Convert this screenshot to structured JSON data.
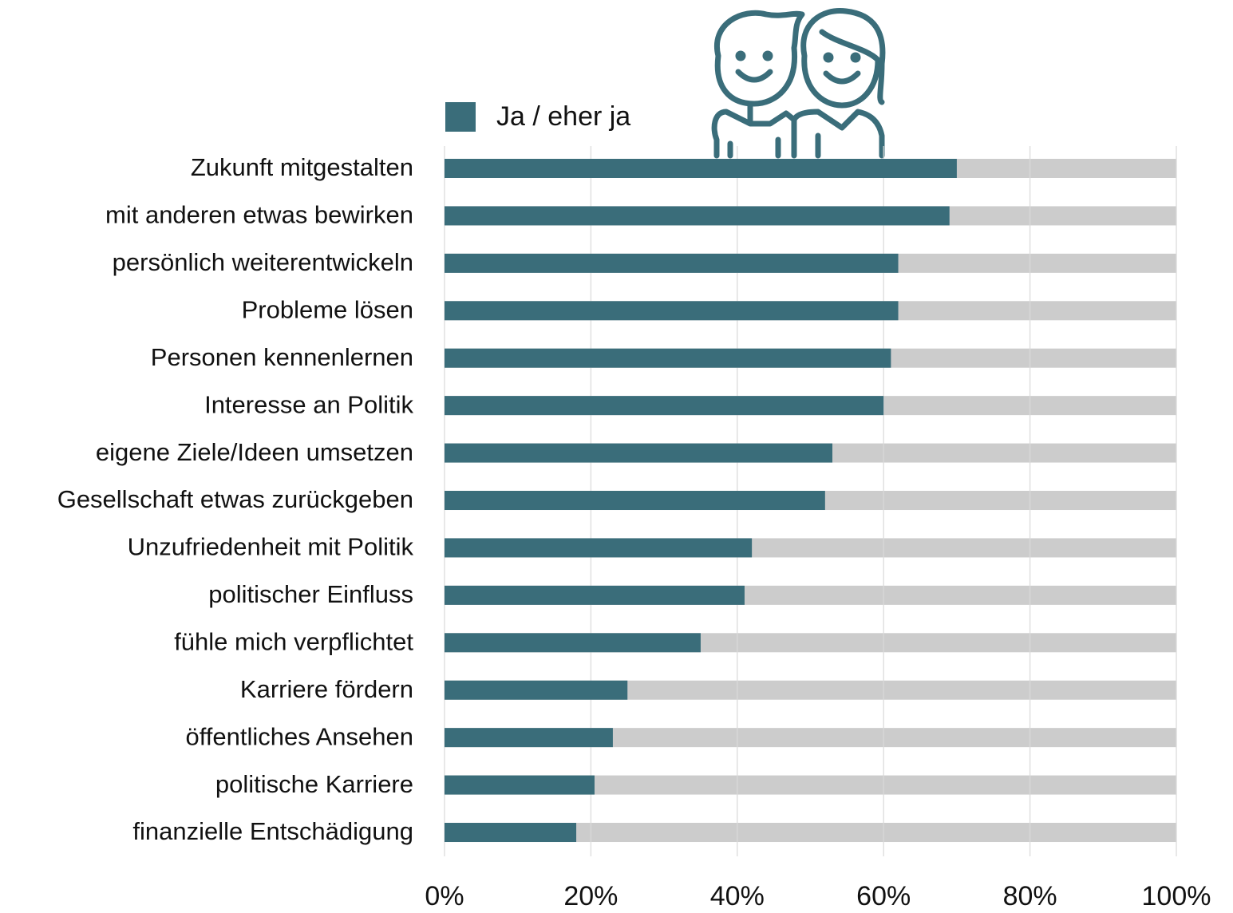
{
  "chart_data": {
    "type": "bar",
    "orientation": "horizontal",
    "categories": [
      "Zukunft mitgestalten",
      "mit anderen etwas bewirken",
      "persönlich weiterentwickeln",
      "Probleme lösen",
      "Personen kennenlernen",
      "Interesse an Politik",
      "eigene Ziele/Ideen umsetzen",
      "Gesellschaft etwas zurückgeben",
      "Unzufriedenheit mit Politik",
      "politischer Einfluss",
      "fühle mich verpflichtet",
      "Karriere fördern",
      "öffentliches Ansehen",
      "politische Karriere",
      "finanzielle Entschädigung"
    ],
    "series": [
      {
        "name": "Ja / eher ja",
        "color": "#3a6d7a",
        "values": [
          70,
          69,
          62,
          62,
          61,
          60,
          53,
          52,
          42,
          41,
          35,
          25,
          23,
          20.5,
          18
        ]
      }
    ],
    "track_color": "#cccccc",
    "xlim": [
      0,
      100
    ],
    "xticks": [
      {
        "value": 0,
        "label": "0%"
      },
      {
        "value": 20,
        "label": "20%"
      },
      {
        "value": 40,
        "label": "40%"
      },
      {
        "value": 60,
        "label": "60%"
      },
      {
        "value": 80,
        "label": "80%"
      },
      {
        "value": 100,
        "label": "100%"
      }
    ],
    "grid": true,
    "legend": "top"
  }
}
